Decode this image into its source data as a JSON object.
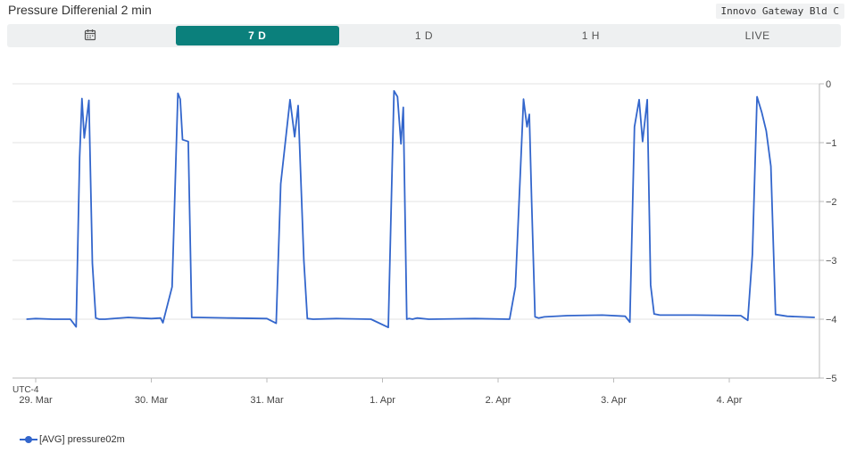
{
  "header": {
    "title": "Pressure Differenial 2 min",
    "gateway": "Innovo Gateway Bld C"
  },
  "tabs": [
    {
      "label": "",
      "icon": "calendar-icon"
    },
    {
      "label": "7 D",
      "active": true
    },
    {
      "label": "1 D"
    },
    {
      "label": "1 H"
    },
    {
      "label": "LIVE"
    }
  ],
  "colors": {
    "accent": "#0b807c",
    "series": "#3366cc"
  },
  "chart_data": {
    "type": "line",
    "timezone_label": "UTC-4",
    "x_tick_labels": [
      "29. Mar",
      "30. Mar",
      "31. Mar",
      "1. Apr",
      "2. Apr",
      "3. Apr",
      "4. Apr"
    ],
    "ylim": [
      -5,
      0
    ],
    "y_ticks": [
      0,
      -1,
      -2,
      -3,
      -4,
      -5
    ],
    "y_axis_side": "right",
    "grid": true,
    "legend": "bottom-left",
    "series": [
      {
        "name": "[AVG] pressure02m",
        "x": [
          -0.08,
          0.0,
          0.15,
          0.3,
          0.35,
          0.38,
          0.4,
          0.42,
          0.46,
          0.49,
          0.52,
          0.55,
          0.6,
          0.8,
          1.0,
          1.08,
          1.1,
          1.18,
          1.23,
          1.25,
          1.27,
          1.32,
          1.35,
          1.4,
          1.7,
          2.0,
          2.08,
          2.12,
          2.2,
          2.24,
          2.27,
          2.32,
          2.35,
          2.4,
          2.6,
          2.9,
          3.05,
          3.1,
          3.13,
          3.16,
          3.18,
          3.21,
          3.23,
          3.26,
          3.28,
          3.3,
          3.4,
          3.8,
          4.1,
          4.15,
          4.22,
          4.25,
          4.27,
          4.29,
          4.32,
          4.35,
          4.4,
          4.6,
          4.9,
          5.1,
          5.14,
          5.18,
          5.22,
          5.25,
          5.29,
          5.32,
          5.35,
          5.4,
          5.7,
          6.1,
          6.16,
          6.2,
          6.24,
          6.28,
          6.32,
          6.36,
          6.4,
          6.5,
          6.74
        ],
        "values": [
          -4.0,
          -3.99,
          -4.0,
          -4.0,
          -4.13,
          -1.25,
          -0.25,
          -0.92,
          -0.28,
          -3.05,
          -3.98,
          -4.0,
          -4.0,
          -3.97,
          -3.99,
          -3.98,
          -4.06,
          -3.45,
          -0.16,
          -0.26,
          -0.95,
          -0.98,
          -3.97,
          -3.97,
          -3.98,
          -3.99,
          -4.07,
          -1.7,
          -0.27,
          -0.9,
          -0.37,
          -3.0,
          -3.99,
          -4.0,
          -3.99,
          -4.0,
          -4.14,
          -0.12,
          -0.22,
          -1.02,
          -0.4,
          -4.0,
          -3.99,
          -4.0,
          -3.99,
          -3.98,
          -4.0,
          -3.99,
          -4.0,
          -3.45,
          -0.26,
          -0.73,
          -0.52,
          -2.0,
          -3.96,
          -3.98,
          -3.96,
          -3.94,
          -3.93,
          -3.95,
          -4.05,
          -0.73,
          -0.27,
          -0.98,
          -0.27,
          -3.42,
          -3.91,
          -3.93,
          -3.93,
          -3.94,
          -4.02,
          -2.9,
          -0.22,
          -0.48,
          -0.8,
          -1.4,
          -3.92,
          -3.95,
          -3.97
        ]
      }
    ]
  }
}
